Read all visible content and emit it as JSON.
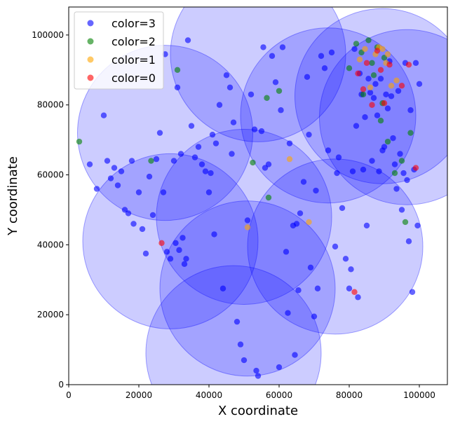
{
  "chart_data": {
    "type": "scatter",
    "title": "",
    "xlabel": "X coordinate",
    "ylabel": "Y coordinate",
    "xlim": [
      0,
      108000
    ],
    "ylim": [
      0,
      108000
    ],
    "xticks": [
      0,
      20000,
      40000,
      60000,
      80000,
      100000
    ],
    "yticks": [
      0,
      20000,
      40000,
      60000,
      80000,
      100000
    ],
    "xtick_labels": [
      "0",
      "20000",
      "40000",
      "60000",
      "80000",
      "100000"
    ],
    "ytick_labels": [
      "0",
      "20000",
      "40000",
      "60000",
      "80000",
      "100000"
    ],
    "grid": false,
    "legend_position": "top-left",
    "circle_color": "#0000ff",
    "circles": [
      {
        "cx": 47000,
        "cy": 9000,
        "r": 25000
      },
      {
        "cx": 51000,
        "cy": 27500,
        "r": 25000
      },
      {
        "cx": 29000,
        "cy": 41000,
        "r": 25000
      },
      {
        "cx": 50000,
        "cy": 48000,
        "r": 25000
      },
      {
        "cx": 76000,
        "cy": 39500,
        "r": 25000
      },
      {
        "cx": 27500,
        "cy": 72000,
        "r": 25000
      },
      {
        "cx": 54000,
        "cy": 94500,
        "r": 25000
      },
      {
        "cx": 74000,
        "cy": 77000,
        "r": 25000
      },
      {
        "cx": 89500,
        "cy": 82500,
        "r": 25000
      },
      {
        "cx": 96500,
        "cy": 76500,
        "r": 25000
      }
    ],
    "series": [
      {
        "name": "color=3",
        "color": "#0000ff",
        "points": [
          [
            6000,
            63000
          ],
          [
            8000,
            56000
          ],
          [
            10000,
            77000
          ],
          [
            11000,
            64000
          ],
          [
            12000,
            59000
          ],
          [
            13000,
            62000
          ],
          [
            14000,
            57000
          ],
          [
            15000,
            61000
          ],
          [
            16000,
            50000
          ],
          [
            17000,
            49000
          ],
          [
            18000,
            64000
          ],
          [
            18500,
            46000
          ],
          [
            20000,
            55000
          ],
          [
            21000,
            44500
          ],
          [
            22000,
            37500
          ],
          [
            23000,
            59500
          ],
          [
            24000,
            48500
          ],
          [
            25000,
            64500
          ],
          [
            26000,
            72000
          ],
          [
            27000,
            55000
          ],
          [
            27500,
            94500
          ],
          [
            28000,
            38000
          ],
          [
            29000,
            36000
          ],
          [
            30000,
            64000
          ],
          [
            30500,
            40500
          ],
          [
            31000,
            85000
          ],
          [
            31500,
            38500
          ],
          [
            32000,
            66000
          ],
          [
            32500,
            42000
          ],
          [
            33000,
            34500
          ],
          [
            33500,
            36000
          ],
          [
            34000,
            98500
          ],
          [
            35000,
            74000
          ],
          [
            36000,
            65000
          ],
          [
            37000,
            68000
          ],
          [
            38000,
            63000
          ],
          [
            39000,
            61000
          ],
          [
            40000,
            55000
          ],
          [
            40500,
            60500
          ],
          [
            41000,
            71500
          ],
          [
            41500,
            43000
          ],
          [
            42000,
            69000
          ],
          [
            43000,
            80000
          ],
          [
            44000,
            27500
          ],
          [
            45000,
            88500
          ],
          [
            46000,
            85000
          ],
          [
            46500,
            66000
          ],
          [
            47000,
            75000
          ],
          [
            48000,
            18000
          ],
          [
            49000,
            11500
          ],
          [
            50000,
            7000
          ],
          [
            51000,
            47000
          ],
          [
            52000,
            83000
          ],
          [
            53000,
            73000
          ],
          [
            53500,
            4000
          ],
          [
            54000,
            2500
          ],
          [
            55000,
            72500
          ],
          [
            55500,
            96500
          ],
          [
            56000,
            62000
          ],
          [
            57000,
            63000
          ],
          [
            58000,
            94000
          ],
          [
            59000,
            86500
          ],
          [
            60000,
            5000
          ],
          [
            60500,
            78500
          ],
          [
            61000,
            96500
          ],
          [
            62000,
            38000
          ],
          [
            62500,
            20500
          ],
          [
            63000,
            69000
          ],
          [
            64000,
            45500
          ],
          [
            64500,
            8500
          ],
          [
            65000,
            46000
          ],
          [
            65500,
            27000
          ],
          [
            66000,
            49000
          ],
          [
            67000,
            58000
          ],
          [
            68000,
            88000
          ],
          [
            68500,
            71500
          ],
          [
            69000,
            33500
          ],
          [
            70000,
            19500
          ],
          [
            70500,
            55500
          ],
          [
            71000,
            27500
          ],
          [
            72000,
            94000
          ],
          [
            73000,
            90500
          ],
          [
            74000,
            67000
          ],
          [
            75000,
            95000
          ],
          [
            76000,
            39500
          ],
          [
            76500,
            60500
          ],
          [
            77000,
            65000
          ],
          [
            78000,
            50500
          ],
          [
            79000,
            36000
          ],
          [
            80000,
            27500
          ],
          [
            80500,
            33000
          ],
          [
            81000,
            61000
          ],
          [
            81500,
            96000
          ],
          [
            82000,
            74000
          ],
          [
            82500,
            25000
          ],
          [
            83000,
            89000
          ],
          [
            83500,
            83000
          ],
          [
            84000,
            61500
          ],
          [
            84500,
            76500
          ],
          [
            85000,
            45500
          ],
          [
            85500,
            87500
          ],
          [
            86000,
            83500
          ],
          [
            86500,
            64000
          ],
          [
            87000,
            82000
          ],
          [
            87500,
            86000
          ],
          [
            88000,
            77000
          ],
          [
            88500,
            61000
          ],
          [
            89000,
            87500
          ],
          [
            89500,
            67000
          ],
          [
            90000,
            68000
          ],
          [
            90500,
            83000
          ],
          [
            91000,
            79000
          ],
          [
            91500,
            92500
          ],
          [
            92000,
            82500
          ],
          [
            92500,
            70500
          ],
          [
            93000,
            63000
          ],
          [
            93500,
            56000
          ],
          [
            94000,
            84000
          ],
          [
            94500,
            66000
          ],
          [
            95000,
            50000
          ],
          [
            95500,
            60500
          ],
          [
            96000,
            92000
          ],
          [
            96500,
            58500
          ],
          [
            97000,
            41000
          ],
          [
            97500,
            78500
          ],
          [
            98000,
            26500
          ],
          [
            98500,
            61500
          ],
          [
            99000,
            92000
          ],
          [
            99500,
            45500
          ],
          [
            100000,
            86000
          ]
        ]
      },
      {
        "name": "color=2",
        "color": "#008000",
        "points": [
          [
            3000,
            69500
          ],
          [
            23500,
            64000
          ],
          [
            31000,
            90000
          ],
          [
            52500,
            63500
          ],
          [
            56500,
            82000
          ],
          [
            57000,
            53500
          ],
          [
            60000,
            84000
          ],
          [
            80000,
            90500
          ],
          [
            82000,
            97500
          ],
          [
            83500,
            95000
          ],
          [
            84000,
            83000
          ],
          [
            85500,
            98500
          ],
          [
            86500,
            92000
          ],
          [
            87000,
            88500
          ],
          [
            88000,
            96500
          ],
          [
            89000,
            75500
          ],
          [
            89500,
            80500
          ],
          [
            90000,
            93500
          ],
          [
            91000,
            69500
          ],
          [
            93000,
            60500
          ],
          [
            95000,
            64000
          ],
          [
            96000,
            46500
          ],
          [
            97500,
            72000
          ]
        ]
      },
      {
        "name": "color=1",
        "color": "#ffa500",
        "points": [
          [
            51000,
            45000
          ],
          [
            63000,
            64500
          ],
          [
            68500,
            46500
          ],
          [
            83000,
            93000
          ],
          [
            84500,
            96000
          ],
          [
            86000,
            85000
          ],
          [
            87500,
            94500
          ],
          [
            88500,
            96500
          ],
          [
            89500,
            96000
          ],
          [
            90500,
            92000
          ],
          [
            91000,
            94500
          ],
          [
            92000,
            85500
          ],
          [
            93500,
            87000
          ]
        ]
      },
      {
        "name": "color=0",
        "color": "#ff0000",
        "points": [
          [
            26500,
            40500
          ],
          [
            81500,
            26500
          ],
          [
            82500,
            89000
          ],
          [
            84000,
            84500
          ],
          [
            85000,
            92000
          ],
          [
            86500,
            80000
          ],
          [
            88000,
            95500
          ],
          [
            89000,
            90000
          ],
          [
            90000,
            80500
          ],
          [
            91500,
            91500
          ],
          [
            95000,
            85500
          ],
          [
            97000,
            91500
          ],
          [
            99000,
            62000
          ]
        ]
      }
    ]
  }
}
